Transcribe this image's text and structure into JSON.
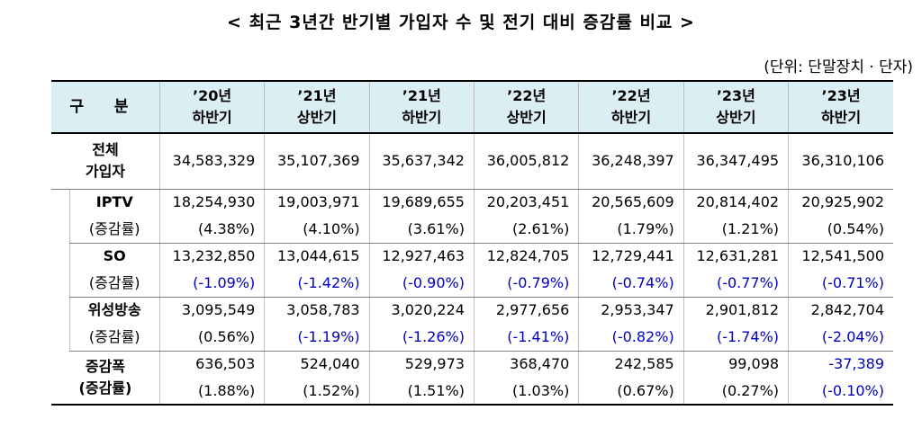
{
  "title": "< 최근 3년간 반기별 가입자 수 및 전기 대비 증감률 비교 >",
  "unit": "(단위: 단말장치 · 단자)",
  "header": {
    "label": "구 분",
    "periods": [
      {
        "year": "’20년",
        "half": "하반기"
      },
      {
        "year": "’21년",
        "half": "상반기"
      },
      {
        "year": "’21년",
        "half": "하반기"
      },
      {
        "year": "’22년",
        "half": "상반기"
      },
      {
        "year": "’22년",
        "half": "하반기"
      },
      {
        "year": "’23년",
        "half": "상반기"
      },
      {
        "year": "’23년",
        "half": "하반기"
      }
    ]
  },
  "total": {
    "label_line1": "전체",
    "label_line2": "가입자",
    "values": [
      "34,583,329",
      "35,107,369",
      "35,637,342",
      "36,005,812",
      "36,248,397",
      "36,347,495",
      "36,310,106"
    ]
  },
  "groups": [
    {
      "name": "IPTV",
      "rate_label": "(증감률)",
      "values": [
        "18,254,930",
        "19,003,971",
        "19,689,655",
        "20,203,451",
        "20,565,609",
        "20,814,402",
        "20,925,902"
      ],
      "rates": [
        "(4.38%)",
        "(4.10%)",
        "(3.61%)",
        "(2.61%)",
        "(1.79%)",
        "(1.21%)",
        "(0.54%)"
      ]
    },
    {
      "name": "SO",
      "rate_label": "(증감률)",
      "values": [
        "13,232,850",
        "13,044,615",
        "12,927,463",
        "12,824,705",
        "12,729,441",
        "12,631,281",
        "12,541,500"
      ],
      "rates": [
        "(-1.09%)",
        "(-1.42%)",
        "(-0.90%)",
        "(-0.79%)",
        "(-0.74%)",
        "(-0.77%)",
        "(-0.71%)"
      ]
    },
    {
      "name": "위성방송",
      "rate_label": "(증감률)",
      "values": [
        "3,095,549",
        "3,058,783",
        "3,020,224",
        "2,977,656",
        "2,953,347",
        "2,901,812",
        "2,842,704"
      ],
      "rates": [
        "(0.56%)",
        "(-1.19%)",
        "(-1.26%)",
        "(-1.41%)",
        "(-0.82%)",
        "(-1.74%)",
        "(-2.04%)"
      ]
    }
  ],
  "change": {
    "label_line1": "증감폭",
    "label_line2": "(증감률)",
    "values": [
      "636,503",
      "524,040",
      "529,973",
      "368,470",
      "242,585",
      "99,098",
      "-37,389"
    ],
    "rates": [
      "(1.88%)",
      "(1.52%)",
      "(1.51%)",
      "(1.03%)",
      "(0.67%)",
      "(0.27%)",
      "(-0.10%)"
    ]
  },
  "colors": {
    "header_bg": "#dbeef3",
    "negative_text": "#0000c0"
  }
}
